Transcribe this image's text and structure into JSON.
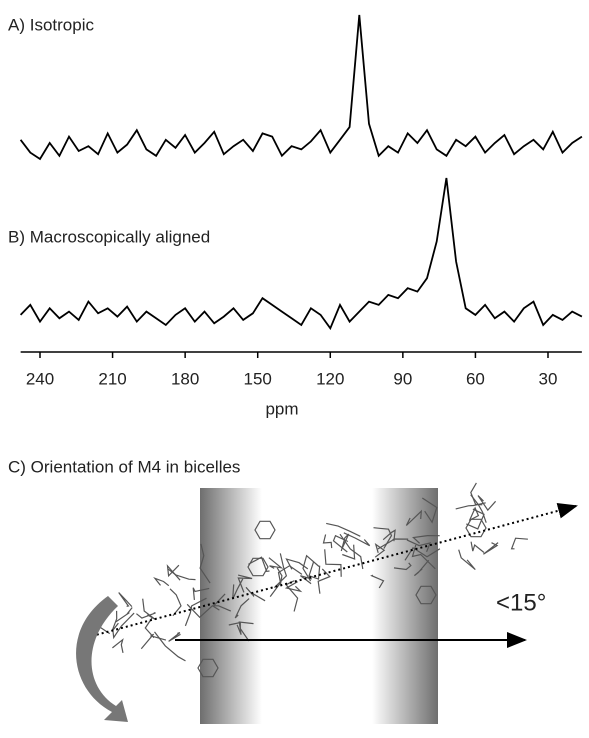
{
  "chart_data": {
    "type": "line",
    "x": [
      248,
      244,
      240,
      236,
      232,
      228,
      224,
      220,
      216,
      212,
      208,
      204,
      200,
      196,
      192,
      188,
      184,
      180,
      176,
      172,
      168,
      164,
      160,
      156,
      152,
      148,
      144,
      140,
      136,
      132,
      128,
      124,
      120,
      116,
      112,
      108,
      104,
      100,
      96,
      92,
      88,
      84,
      80,
      76,
      72,
      68,
      64,
      60,
      56,
      52,
      48,
      44,
      40,
      36,
      32,
      28,
      24,
      20,
      16
    ],
    "xlabel": "ppm",
    "xticks": [
      240,
      210,
      180,
      150,
      120,
      90,
      60,
      30
    ],
    "series": [
      {
        "name": "A) Isotropic",
        "color": "#000000",
        "values": [
          22,
          14,
          10,
          20,
          12,
          24,
          15,
          18,
          13,
          26,
          14,
          19,
          28,
          16,
          12,
          22,
          17,
          25,
          14,
          20,
          27,
          13,
          18,
          22,
          15,
          26,
          24,
          12,
          18,
          16,
          21,
          28,
          14,
          22,
          30,
          100,
          32,
          12,
          18,
          14,
          26,
          20,
          28,
          16,
          12,
          22,
          18,
          24,
          14,
          20,
          25,
          13,
          18,
          22,
          16,
          27,
          14,
          20,
          24
        ]
      },
      {
        "name": "B) Macroscopically aligned",
        "color": "#000000",
        "values": [
          18,
          24,
          14,
          22,
          16,
          20,
          15,
          26,
          19,
          22,
          17,
          23,
          14,
          20,
          16,
          12,
          18,
          22,
          14,
          20,
          13,
          17,
          22,
          15,
          19,
          28,
          24,
          20,
          16,
          12,
          22,
          18,
          10,
          24,
          14,
          20,
          26,
          24,
          30,
          28,
          34,
          32,
          40,
          62,
          100,
          50,
          22,
          18,
          24,
          16,
          20,
          14,
          22,
          26,
          12,
          18,
          15,
          20,
          17
        ]
      }
    ]
  },
  "panel_c": {
    "title": "C) Orientation of M4 in bicelles",
    "angle_label": "<15°"
  }
}
